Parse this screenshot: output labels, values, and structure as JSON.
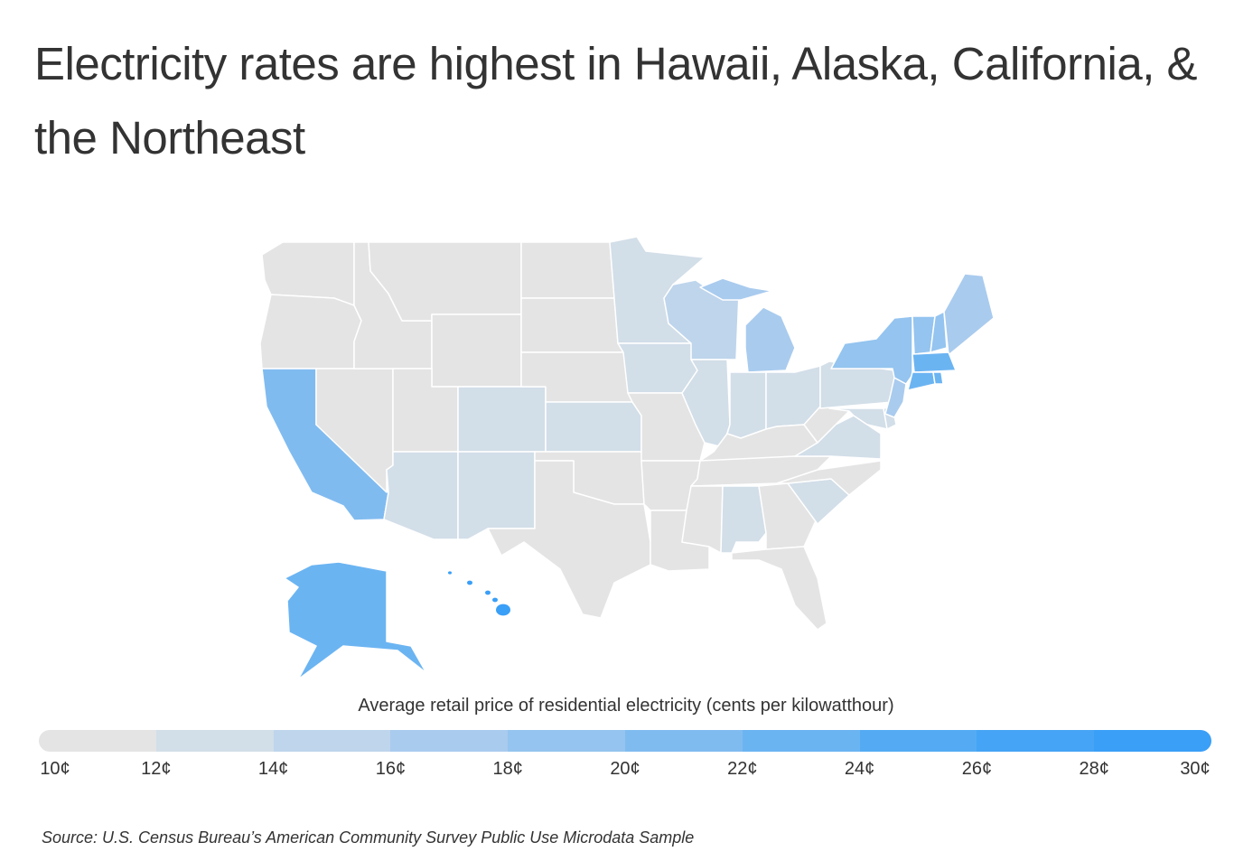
{
  "title": "Electricity rates are highest in Hawaii, Alaska, California, & the Northeast",
  "legend": {
    "title": "Average retail price of residential electricity (cents per kilowatthour)",
    "ticks": [
      "10¢",
      "12¢",
      "14¢",
      "16¢",
      "18¢",
      "20¢",
      "22¢",
      "24¢",
      "26¢",
      "28¢",
      "30¢"
    ],
    "colors": [
      "#e4e4e4",
      "#d2dee8",
      "#bed5ec",
      "#a9cbee",
      "#94c4ef",
      "#80bbf0",
      "#6bb4f2",
      "#54abf4",
      "#45a4f5",
      "#3a9ff7"
    ]
  },
  "map_data": {
    "unit": "cents per kilowatthour",
    "bin_lower_bound_by_state": {
      "WA": 10,
      "OR": 10,
      "CA": 20,
      "NV": 10,
      "ID": 10,
      "MT": 10,
      "WY": 10,
      "UT": 10,
      "AZ": 12,
      "CO": 12,
      "NM": 12,
      "ND": 10,
      "SD": 10,
      "NE": 10,
      "KS": 12,
      "OK": 10,
      "TX": 10,
      "MN": 12,
      "IA": 12,
      "MO": 10,
      "AR": 10,
      "LA": 10,
      "WI": 14,
      "IL": 12,
      "MI": 16,
      "IN": 12,
      "OH": 12,
      "KY": 10,
      "TN": 10,
      "MS": 10,
      "AL": 12,
      "GA": 10,
      "FL": 10,
      "SC": 12,
      "NC": 10,
      "VA": 12,
      "WV": 10,
      "PA": 12,
      "MD": 12,
      "DE": 12,
      "NJ": 16,
      "NY": 18,
      "VT": 18,
      "NH": 18,
      "ME": 16,
      "MA": 22,
      "CT": 22,
      "RI": 22,
      "AK": 22,
      "HI": 28
    }
  },
  "source": "Source:  U.S. Census Bureau’s American Community Survey Public Use Microdata Sample"
}
